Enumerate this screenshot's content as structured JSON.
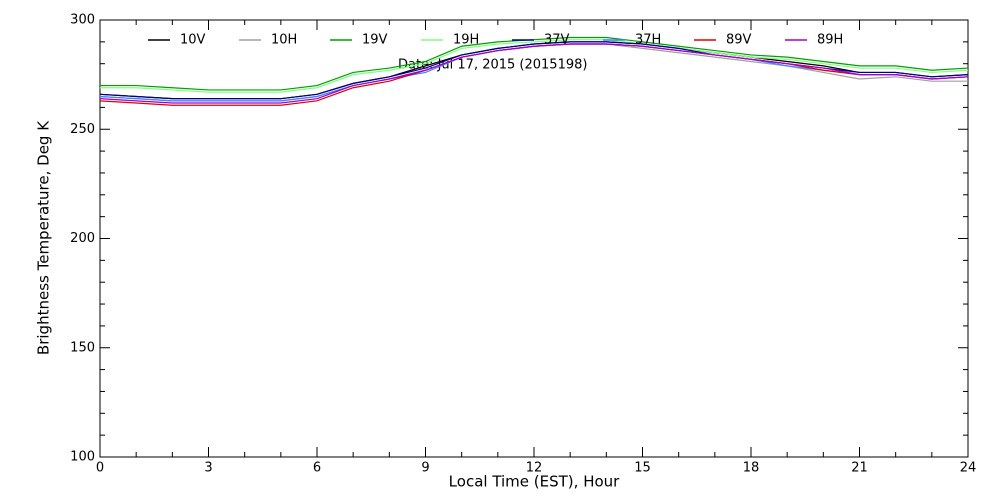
{
  "chart_data": {
    "type": "line",
    "xlabel": "Local Time (EST), Hour",
    "ylabel": "Brightness Temperature, Deg K",
    "annotation": "Date: Jul 17, 2015 (2015198)",
    "x": [
      0,
      1,
      2,
      3,
      4,
      5,
      6,
      7,
      8,
      9,
      10,
      11,
      12,
      13,
      14,
      15,
      16,
      17,
      18,
      19,
      20,
      21,
      22,
      23,
      24
    ],
    "xlim": [
      0,
      24
    ],
    "xticks": [
      0,
      3,
      6,
      9,
      12,
      15,
      18,
      21,
      24
    ],
    "ylim": [
      100,
      300
    ],
    "yticks": [
      100,
      150,
      200,
      250,
      300
    ],
    "series": [
      {
        "name": "10V",
        "color": "#000000",
        "values": [
          266,
          265,
          264,
          264,
          264,
          264,
          266,
          271,
          274,
          279,
          284,
          287,
          289,
          290,
          290,
          289,
          287,
          285,
          283,
          281,
          279,
          276,
          276,
          274,
          275
        ]
      },
      {
        "name": "10H",
        "color": "#a0a0a0",
        "values": [
          265,
          264,
          263,
          263,
          263,
          263,
          265,
          270,
          273,
          277,
          283,
          286,
          288,
          289,
          289,
          287,
          285,
          283,
          281,
          279,
          276,
          273,
          274,
          272,
          272
        ]
      },
      {
        "name": "19V",
        "color": "#00a000",
        "values": [
          270,
          270,
          269,
          268,
          268,
          268,
          270,
          276,
          278,
          281,
          288,
          290,
          291,
          292,
          292,
          290,
          288,
          286,
          284,
          283,
          281,
          279,
          279,
          277,
          278
        ]
      },
      {
        "name": "19H",
        "color": "#80ff80",
        "values": [
          269,
          269,
          268,
          267,
          267,
          267,
          269,
          275,
          277,
          280,
          287,
          289,
          290,
          291,
          291,
          289,
          287,
          285,
          283,
          282,
          280,
          278,
          278,
          276,
          277
        ]
      },
      {
        "name": "37V",
        "color": "#000090",
        "values": [
          266,
          265,
          264,
          264,
          264,
          264,
          266,
          271,
          274,
          278,
          284,
          287,
          289,
          290,
          290,
          289,
          287,
          284,
          282,
          280,
          278,
          276,
          276,
          274,
          275
        ]
      },
      {
        "name": "37H",
        "color": "#4080ff",
        "values": [
          265,
          264,
          263,
          263,
          263,
          263,
          265,
          270,
          273,
          276,
          283,
          286,
          288,
          289,
          289,
          288,
          286,
          284,
          282,
          279,
          277,
          275,
          275,
          273,
          274
        ]
      },
      {
        "name": "89V",
        "color": "#e00000",
        "values": [
          263,
          262,
          261,
          261,
          261,
          261,
          263,
          269,
          272,
          277,
          283,
          286,
          288,
          289,
          289,
          288,
          286,
          284,
          282,
          280,
          277,
          275,
          275,
          273,
          274
        ]
      },
      {
        "name": "89H",
        "color": "#a000d0",
        "values": [
          264,
          263,
          262,
          262,
          262,
          262,
          264,
          270,
          273,
          277,
          283,
          286,
          288,
          289,
          289,
          288,
          286,
          284,
          282,
          280,
          278,
          275,
          275,
          273,
          274
        ]
      }
    ]
  }
}
